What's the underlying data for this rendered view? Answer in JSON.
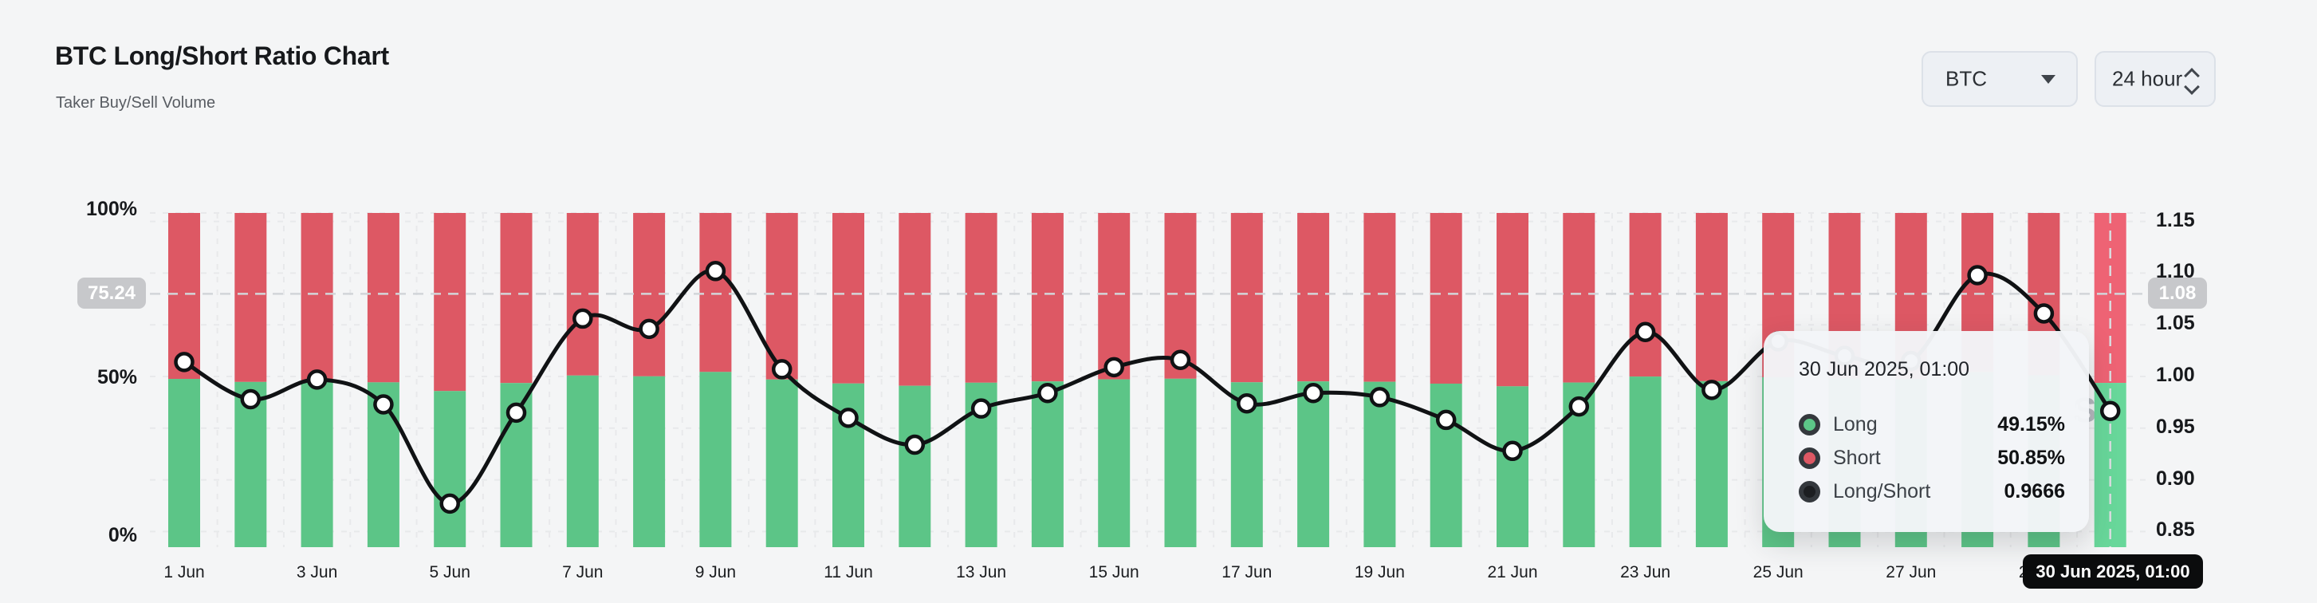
{
  "header": {
    "title": "BTC Long/Short Ratio Chart",
    "subtitle": "Taker Buy/Sell Volume"
  },
  "controls": {
    "symbol": "BTC",
    "interval": "24 hour"
  },
  "watermark": "S",
  "crosshair": {
    "left_axis_label": "75.24",
    "right_axis_label": "1.08",
    "bottom_label": "30 Jun 2025, 01:00"
  },
  "tooltip": {
    "title": "30 Jun 2025, 01:00",
    "rows": [
      {
        "label": "Long",
        "value": "49.15%",
        "marker_color": "#5cc587"
      },
      {
        "label": "Short",
        "value": "50.85%",
        "marker_color": "#dd5864"
      },
      {
        "label": "Long/Short",
        "value": "0.9666",
        "marker_color": "#1c1e21"
      }
    ]
  },
  "colors": {
    "background": "#f4f5f6",
    "long_bar": "#5cc587",
    "short_bar": "#dd5864",
    "long_bar_active": "#68d79a",
    "short_bar_active": "#ee6374",
    "ratio_line": "#101214",
    "gridline": "#e8e9eb",
    "crosshair": "#d2d5d9",
    "crosshair_badge": "#c7c8cb"
  },
  "chart_data": {
    "type": "bar",
    "variant": "stacked-100pct-bars-with-line-overlay",
    "title": "BTC Long/Short Ratio Chart",
    "categories": [
      "1 Jun",
      "2 Jun",
      "3 Jun",
      "4 Jun",
      "5 Jun",
      "6 Jun",
      "7 Jun",
      "8 Jun",
      "9 Jun",
      "10 Jun",
      "11 Jun",
      "12 Jun",
      "13 Jun",
      "14 Jun",
      "15 Jun",
      "16 Jun",
      "17 Jun",
      "18 Jun",
      "19 Jun",
      "20 Jun",
      "21 Jun",
      "22 Jun",
      "23 Jun",
      "24 Jun",
      "25 Jun",
      "26 Jun",
      "27 Jun",
      "28 Jun",
      "29 Jun",
      "30 Jun"
    ],
    "series": [
      {
        "name": "Long",
        "type": "bar",
        "axis": "left",
        "unit": "%",
        "color": "#5cc587",
        "values": [
          50.35,
          49.44,
          49.92,
          49.32,
          46.72,
          49.11,
          51.36,
          51.12,
          52.43,
          50.17,
          48.98,
          48.29,
          49.21,
          49.6,
          50.22,
          50.4,
          49.34,
          49.6,
          49.49,
          48.93,
          48.13,
          49.26,
          51.05,
          49.67,
          50.84,
          50.5,
          50.37,
          52.33,
          51.48,
          49.15
        ]
      },
      {
        "name": "Short",
        "type": "bar",
        "axis": "left",
        "unit": "%",
        "color": "#dd5864",
        "values": [
          49.65,
          50.56,
          50.08,
          50.68,
          53.28,
          50.89,
          48.64,
          48.88,
          47.57,
          49.83,
          51.02,
          51.71,
          50.79,
          50.4,
          49.78,
          49.6,
          50.66,
          50.4,
          50.51,
          51.07,
          51.87,
          50.74,
          48.95,
          50.33,
          49.16,
          49.5,
          49.63,
          47.67,
          48.52,
          50.85
        ]
      },
      {
        "name": "Long/Short",
        "type": "line",
        "axis": "right",
        "color": "#101214",
        "values": [
          1.014,
          0.978,
          0.997,
          0.973,
          0.877,
          0.965,
          1.056,
          1.046,
          1.102,
          1.007,
          0.96,
          0.934,
          0.969,
          0.984,
          1.009,
          1.016,
          0.974,
          0.984,
          0.98,
          0.958,
          0.928,
          0.971,
          1.043,
          0.987,
          1.034,
          1.02,
          1.015,
          1.098,
          1.061,
          0.9666
        ]
      }
    ],
    "x_tick_labels": [
      "1 Jun",
      "3 Jun",
      "5 Jun",
      "7 Jun",
      "9 Jun",
      "11 Jun",
      "13 Jun",
      "15 Jun",
      "17 Jun",
      "19 Jun",
      "21 Jun",
      "23 Jun",
      "25 Jun",
      "27 Jun",
      "29 Jun"
    ],
    "left_axis": {
      "range": [
        0,
        100
      ],
      "tick_labels": [
        "100%",
        "50%",
        "0%"
      ],
      "tick_values": [
        100,
        50,
        0
      ]
    },
    "right_axis": {
      "range": [
        0.834,
        1.158
      ],
      "tick_labels": [
        "1.15",
        "1.10",
        "1.05",
        "1.00",
        "0.95",
        "0.90",
        "0.85"
      ],
      "tick_values": [
        1.15,
        1.1,
        1.05,
        1.0,
        0.95,
        0.9,
        0.85
      ]
    },
    "grid": true,
    "legend_position": "none",
    "highlighted_category": "30 Jun",
    "crosshair": {
      "left_value": 75.24,
      "right_value": 1.08,
      "category": "30 Jun"
    }
  }
}
